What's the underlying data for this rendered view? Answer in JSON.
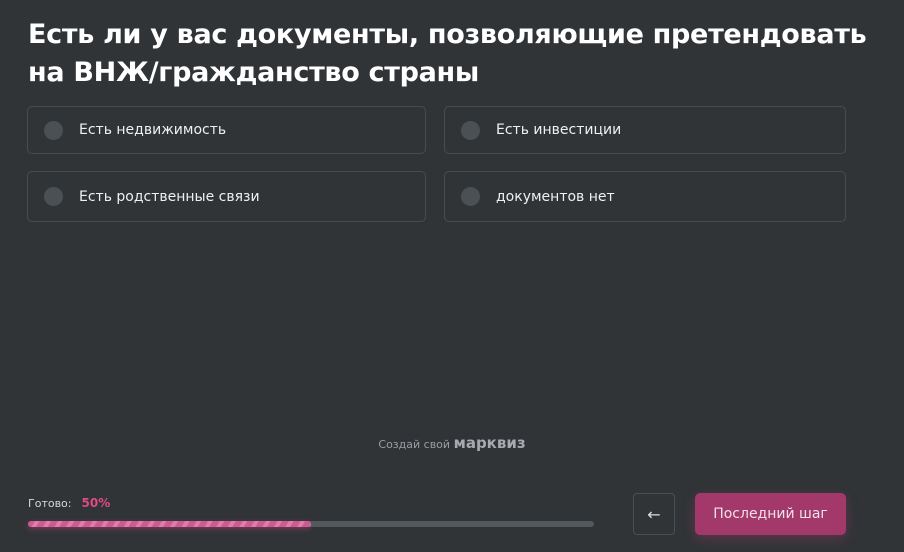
{
  "question": {
    "title": "Есть ли у вас документы, позволяющие претендовать на ВНЖ/гражданство страны"
  },
  "options": [
    {
      "label": "Есть недвижимость"
    },
    {
      "label": "Есть инвестиции"
    },
    {
      "label": "Есть родственные связи"
    },
    {
      "label": "документов нет"
    }
  ],
  "branding": {
    "prefix": "Создай свой",
    "name": "марквиз"
  },
  "progress": {
    "label": "Готово:",
    "value_text": "50%",
    "value": 50
  },
  "nav": {
    "back_icon": "arrow-left-icon",
    "back_glyph": "←",
    "next_label": "Последний шаг"
  },
  "colors": {
    "accent": "#a3386a",
    "progress_text": "#e04a87",
    "background": "#303437"
  }
}
